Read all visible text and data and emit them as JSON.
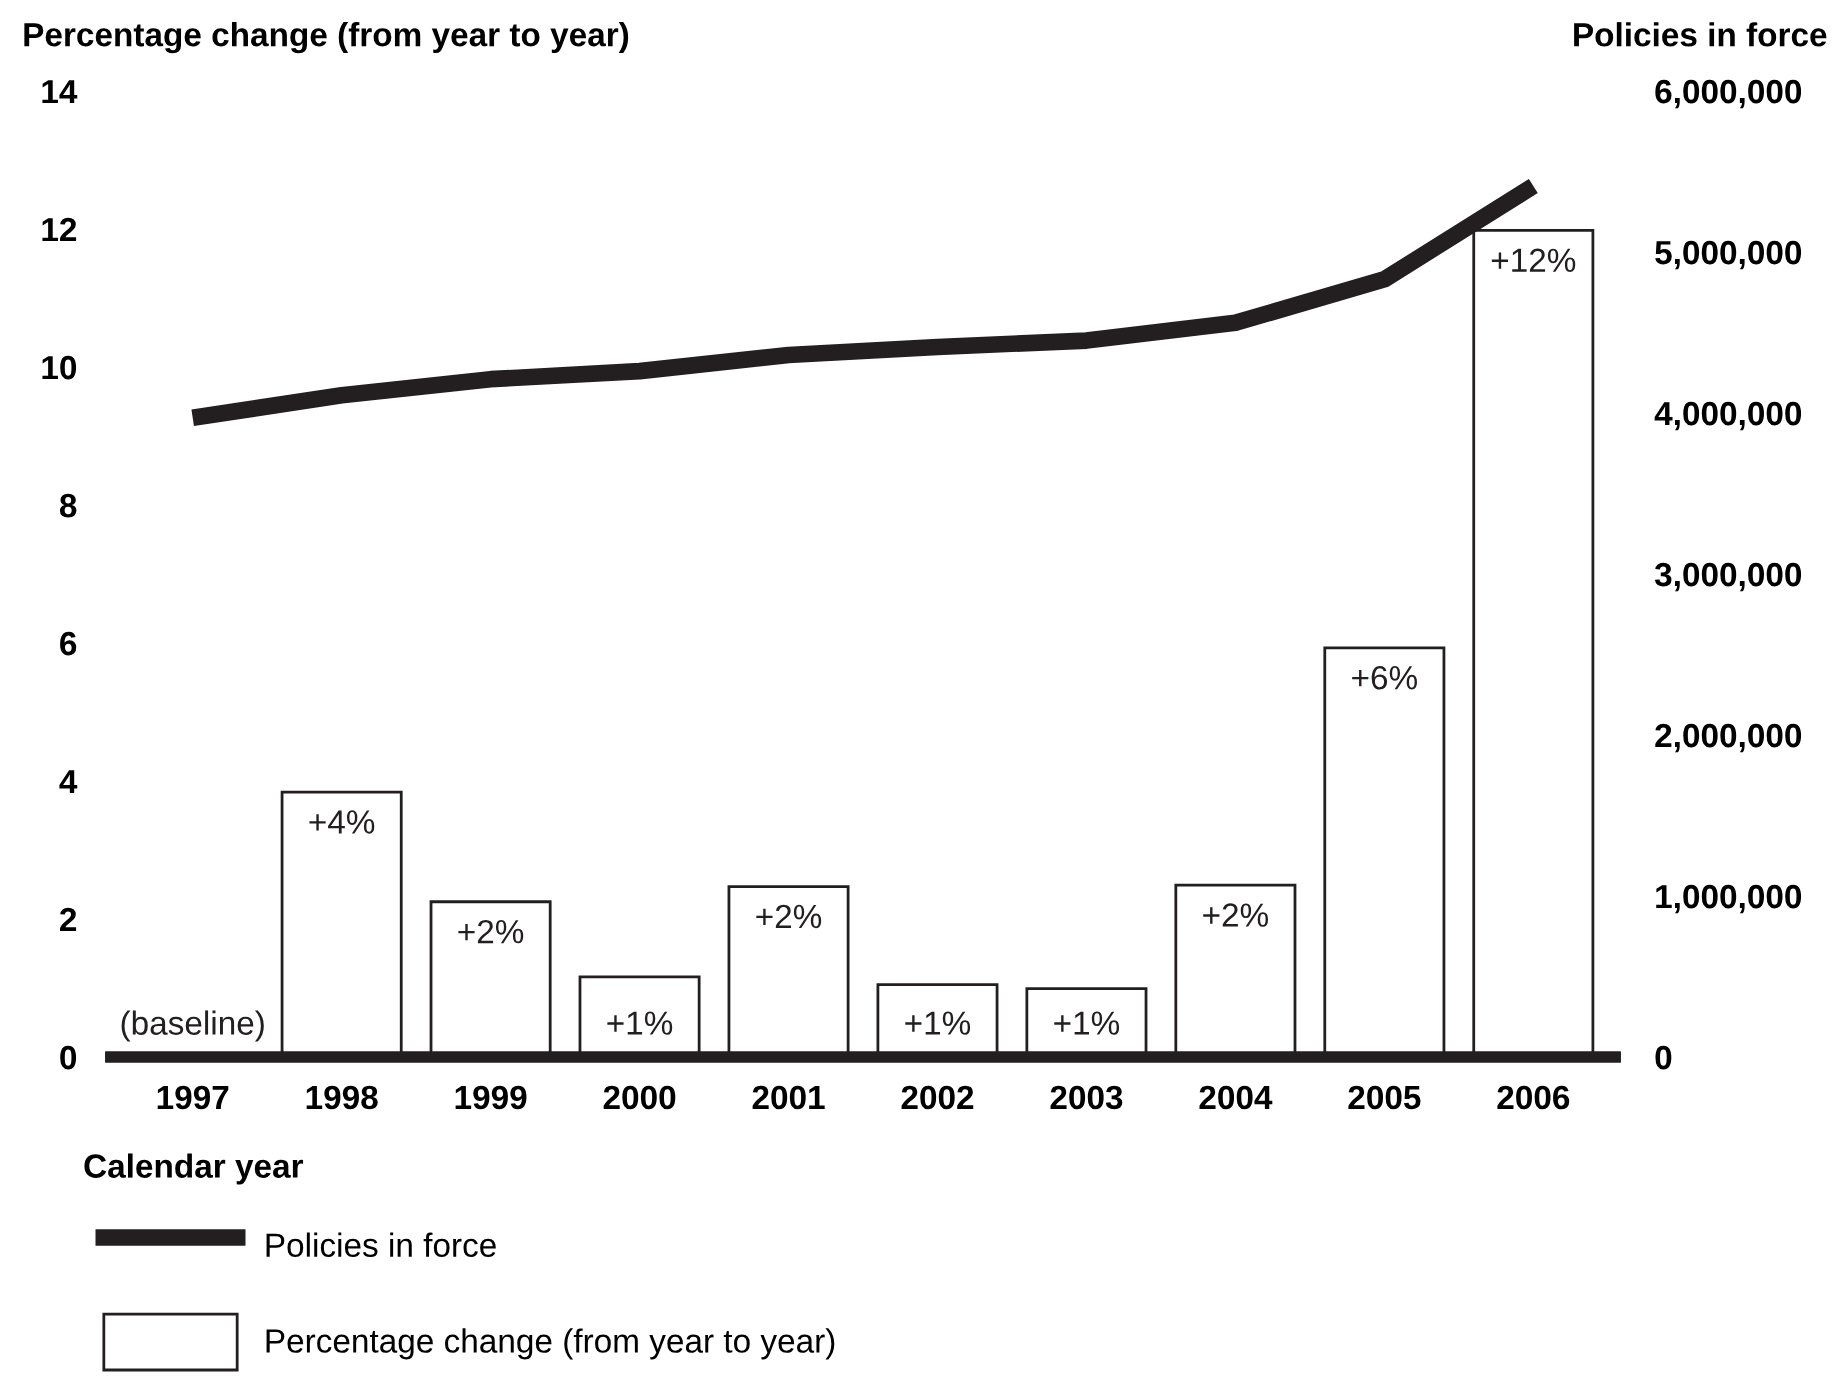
{
  "chart_data": {
    "type": "bar",
    "ylabel": "Percentage change (from year to year)",
    "y2label": "Policies in force",
    "xlabel": "Calendar year",
    "categories": [
      "1997",
      "1998",
      "1999",
      "2000",
      "2001",
      "2002",
      "2003",
      "2004",
      "2005",
      "2006"
    ],
    "series": [
      {
        "name": "Percentage change (from year to year)",
        "color": "#ffffff",
        "values": [
          0,
          3.84,
          2.25,
          1.16,
          2.47,
          1.05,
          0.99,
          2.49,
          5.93,
          11.98
        ],
        "value_labels": [
          "(baseline)",
          "+4%",
          "+2%",
          "+1%",
          "+2%",
          "+1%",
          "+1%",
          "+2%",
          "+6%",
          "+12%"
        ]
      },
      {
        "name": "Policies in force",
        "type": "line",
        "axis": "y2",
        "color": "#231f20",
        "values": [
          3970000,
          4110000,
          4210000,
          4260000,
          4360000,
          4410000,
          4450000,
          4560000,
          4830000,
          5410000
        ]
      }
    ],
    "ylim": [
      0,
      14
    ],
    "yticks": [
      0,
      2,
      4,
      6,
      8,
      10,
      12,
      14
    ],
    "y2lim": [
      0,
      6000000
    ],
    "y2ticks": [
      0,
      {
        "value": 1000000,
        "label": "1,000,000"
      },
      {
        "value": 2000000,
        "label": "2,000,000"
      },
      {
        "value": 3000000,
        "label": "3,000,000"
      },
      {
        "value": 4000000,
        "label": "4,000,000"
      },
      {
        "value": 5000000,
        "label": "5,000,000"
      },
      {
        "value": 6000000,
        "label": "6,000,000"
      }
    ],
    "grid": false,
    "legend": "bottom"
  }
}
